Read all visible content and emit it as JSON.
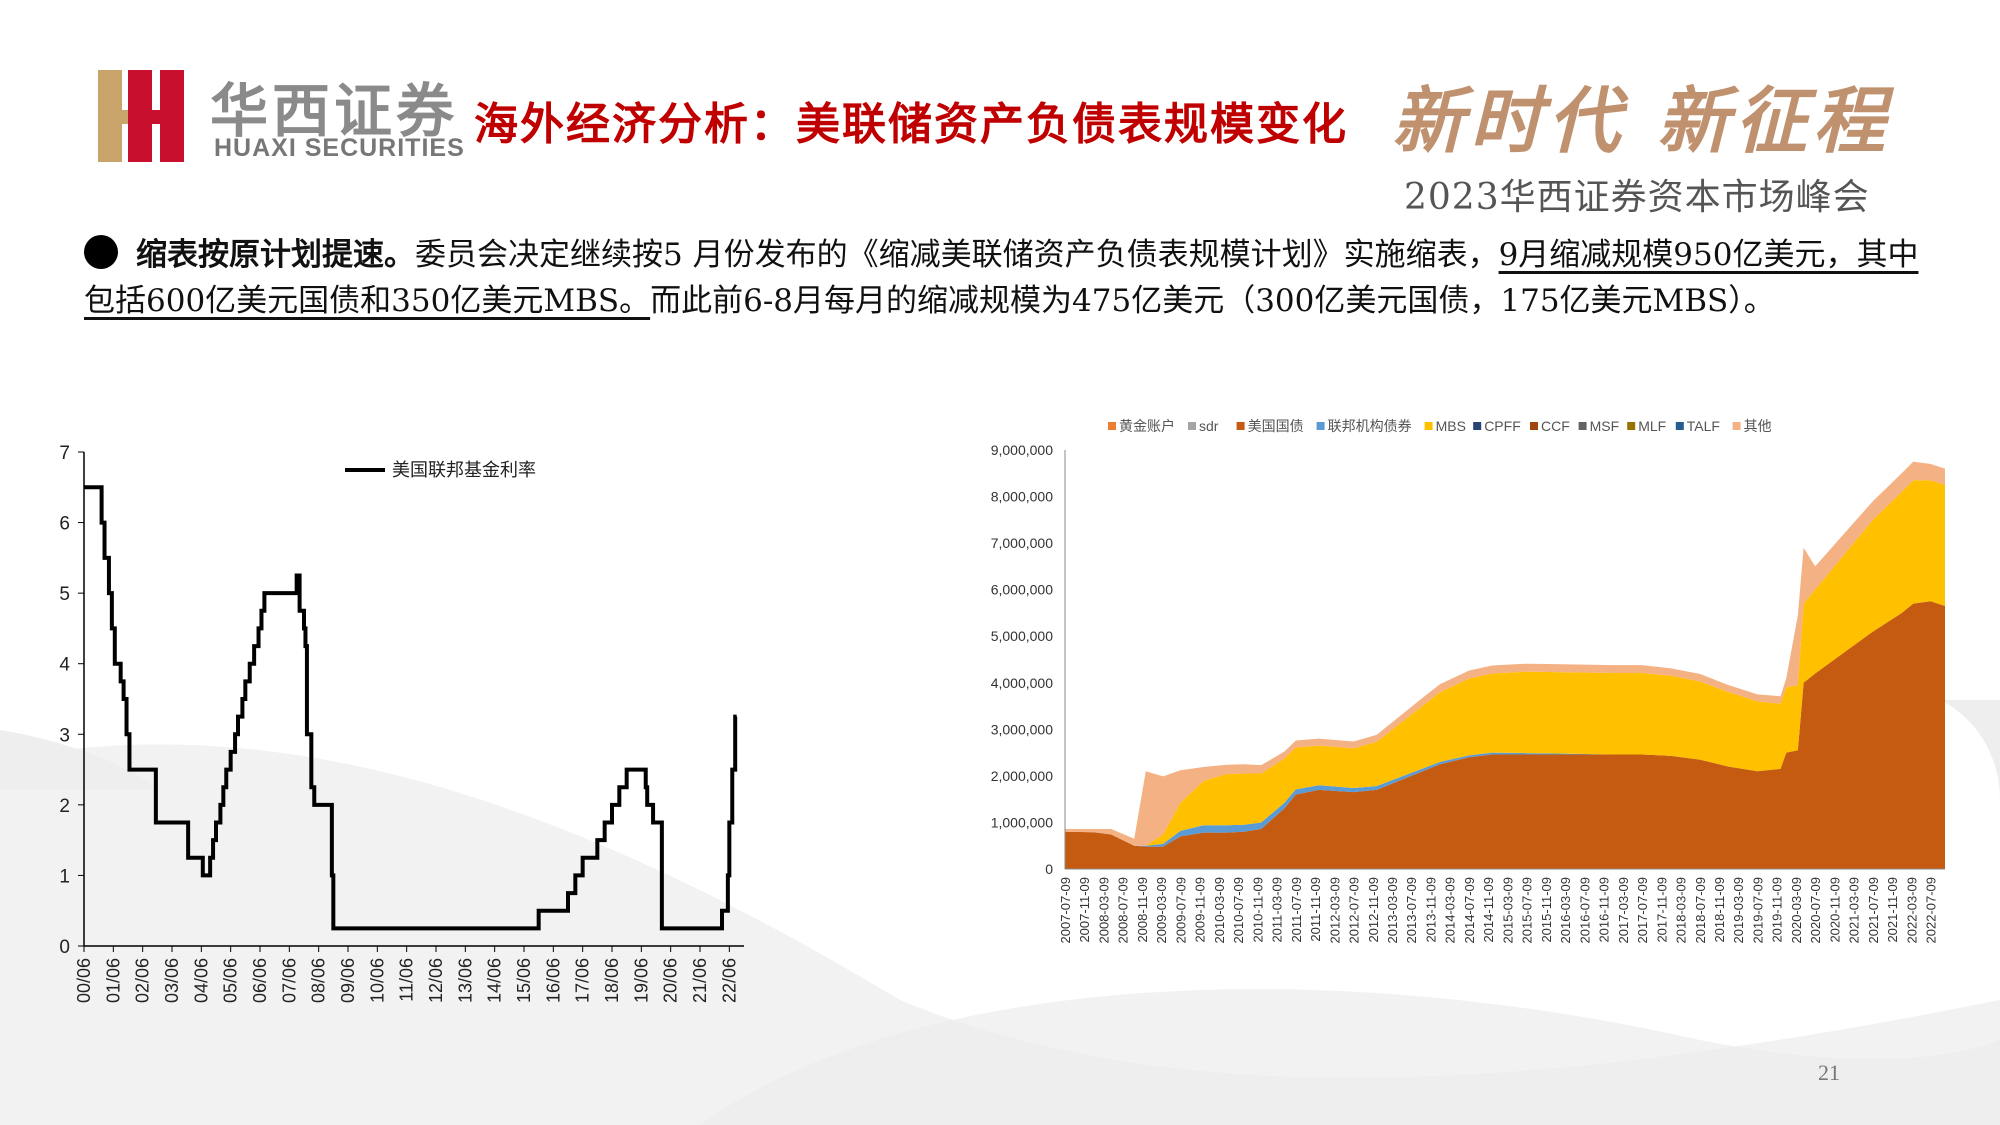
{
  "header": {
    "brand_cn": "华西证券",
    "brand_en": "HUAXI SECURITIES",
    "title": "海外经济分析：美联储资产负债表规模变化",
    "slogan": "新时代  新征程",
    "event": "2023华西证券资本市场峰会"
  },
  "paragraph": {
    "lead": "缩表按原计划提速。",
    "text1": "委员会决定继续按5 月份发布的《缩减美联储资产负债表规模计划》实施缩表，",
    "underlined": "9月缩减规模950亿美元，其中包括600亿美元国债和350亿美元MBS。",
    "text2": "而此前6-8月每月的缩减规模为475亿美元（300亿美元国债，175亿美元MBS）。"
  },
  "page_number": "21",
  "colors": {
    "title_red": "#c00000",
    "slogan_gold": "#c0916e",
    "treasury": "#c55a11",
    "mbs": "#ffc000",
    "other": "#f4b183",
    "agency": "#5b9bd5",
    "gold": "#ed7d31",
    "sdr": "#a5a5a5",
    "cpff": "#264478",
    "ccf": "#9e480e",
    "msf": "#636363",
    "mlf": "#997300",
    "talf": "#255e91"
  },
  "chart_data": [
    {
      "type": "line",
      "series": [
        {
          "name": "美国联邦基金利率",
          "x": [
            2000.45,
            2000.9,
            2001.05,
            2001.15,
            2001.3,
            2001.4,
            2001.5,
            2001.7,
            2001.8,
            2001.9,
            2002.0,
            2002.9,
            2003.5,
            2004.0,
            2004.5,
            2004.6,
            2004.75,
            2004.85,
            2004.95,
            2005.1,
            2005.2,
            2005.3,
            2005.45,
            2005.6,
            2005.7,
            2005.85,
            2005.95,
            2006.1,
            2006.25,
            2006.4,
            2006.5,
            2006.6,
            2007.7,
            2007.8,
            2007.95,
            2008.0,
            2008.05,
            2008.2,
            2008.3,
            2008.45,
            2008.6,
            2008.9,
            2008.95,
            2009.0,
            2015.95,
            2016.95,
            2017.2,
            2017.45,
            2017.95,
            2018.2,
            2018.45,
            2018.7,
            2018.95,
            2019.6,
            2019.65,
            2019.85,
            2020.15,
            2020.25,
            2022.2,
            2022.4,
            2022.45,
            2022.55,
            2022.65,
            2022.7
          ],
          "y": [
            6.5,
            6.5,
            6.0,
            5.5,
            5.0,
            4.5,
            4.0,
            3.75,
            3.5,
            3.0,
            2.5,
            1.75,
            1.75,
            1.25,
            1.0,
            1.0,
            1.25,
            1.5,
            1.75,
            2.0,
            2.25,
            2.5,
            2.75,
            3.0,
            3.25,
            3.5,
            3.75,
            4.0,
            4.25,
            4.5,
            4.75,
            5.0,
            5.25,
            4.75,
            4.5,
            4.25,
            3.0,
            2.25,
            2.0,
            2.0,
            2.0,
            1.0,
            0.25,
            0.25,
            0.5,
            0.75,
            1.0,
            1.25,
            1.5,
            1.75,
            2.0,
            2.25,
            2.5,
            2.25,
            2.0,
            1.75,
            0.25,
            0.25,
            0.5,
            1.0,
            1.75,
            2.5,
            3.25,
            3.25
          ]
        }
      ],
      "x_ticks": [
        "00/06",
        "01/06",
        "02/06",
        "03/06",
        "04/06",
        "05/06",
        "06/06",
        "07/06",
        "08/06",
        "09/06",
        "10/06",
        "11/06",
        "12/06",
        "13/06",
        "14/06",
        "15/06",
        "16/06",
        "17/06",
        "18/06",
        "19/06",
        "20/06",
        "21/06",
        "22/06"
      ],
      "y_ticks": [
        "0",
        "1",
        "2",
        "3",
        "4",
        "5",
        "6",
        "7"
      ],
      "ylim": [
        0,
        7
      ],
      "legend": "top-center"
    },
    {
      "type": "area",
      "stacked": true,
      "legend": [
        "黄金账户",
        "sdr",
        "美国国债",
        "联邦机构债券",
        "MBS",
        "CPFF",
        "CCF",
        "MSF",
        "MLF",
        "TALF",
        "其他"
      ],
      "x_ticks": [
        "2007-07-09",
        "2007-11-09",
        "2008-03-09",
        "2008-07-09",
        "2008-11-09",
        "2009-03-09",
        "2009-07-09",
        "2009-11-09",
        "2010-03-09",
        "2010-07-09",
        "2010-11-09",
        "2011-03-09",
        "2011-07-09",
        "2011-11-09",
        "2012-03-09",
        "2012-07-09",
        "2012-11-09",
        "2013-03-09",
        "2013-07-09",
        "2013-11-09",
        "2014-03-09",
        "2014-07-09",
        "2014-11-09",
        "2015-03-09",
        "2015-07-09",
        "2015-11-09",
        "2016-03-09",
        "2016-07-09",
        "2016-11-09",
        "2017-03-09",
        "2017-07-09",
        "2017-11-09",
        "2018-03-09",
        "2018-07-09",
        "2018-11-09",
        "2019-03-09",
        "2019-07-09",
        "2019-11-09",
        "2020-03-09",
        "2020-07-09",
        "2020-11-09",
        "2021-03-09",
        "2021-07-09",
        "2021-11-09",
        "2022-03-09",
        "2022-07-09"
      ],
      "y_ticks": [
        "0",
        "1,000,000",
        "2,000,000",
        "3,000,000",
        "4,000,000",
        "5,000,000",
        "6,000,000",
        "7,000,000",
        "8,000,000",
        "9,000,000"
      ],
      "ylim": [
        0,
        9000000
      ],
      "x": [
        2007.5,
        2008.0,
        2008.3,
        2008.7,
        2008.9,
        2009.2,
        2009.5,
        2009.9,
        2010.3,
        2010.6,
        2010.9,
        2011.3,
        2011.5,
        2011.9,
        2012.5,
        2012.9,
        2013.3,
        2013.7,
        2014.0,
        2014.5,
        2014.9,
        2015.5,
        2016.0,
        2016.5,
        2017.0,
        2017.5,
        2018.0,
        2018.5,
        2019.0,
        2019.5,
        2019.9,
        2020.0,
        2020.2,
        2020.3,
        2020.5,
        2021.0,
        2021.5,
        2022.0,
        2022.2,
        2022.5,
        2022.75
      ],
      "series": [
        {
          "name": "美国国债",
          "values": [
            800000,
            790000,
            740000,
            500000,
            480000,
            480000,
            700000,
            780000,
            780000,
            800000,
            860000,
            1300000,
            1600000,
            1700000,
            1650000,
            1700000,
            1900000,
            2100000,
            2250000,
            2400000,
            2460000,
            2460000,
            2460000,
            2460000,
            2460000,
            2460000,
            2430000,
            2350000,
            2200000,
            2100000,
            2150000,
            2500000,
            2550000,
            4000000,
            4200000,
            4650000,
            5100000,
            5500000,
            5700000,
            5750000,
            5650000
          ]
        },
        {
          "name": "联邦机构债券",
          "values": [
            0,
            0,
            0,
            0,
            20000,
            60000,
            120000,
            160000,
            160000,
            150000,
            140000,
            120000,
            110000,
            100000,
            90000,
            80000,
            70000,
            60000,
            50000,
            40000,
            40000,
            30000,
            20000,
            10000,
            0,
            0,
            0,
            0,
            0,
            0,
            0,
            0,
            0,
            0,
            0,
            0,
            0,
            0,
            0,
            0,
            0
          ]
        },
        {
          "name": "MBS",
          "values": [
            0,
            0,
            0,
            0,
            0,
            200000,
            600000,
            950000,
            1100000,
            1100000,
            1050000,
            950000,
            900000,
            850000,
            850000,
            950000,
            1150000,
            1350000,
            1500000,
            1650000,
            1700000,
            1750000,
            1750000,
            1750000,
            1750000,
            1750000,
            1720000,
            1680000,
            1600000,
            1500000,
            1400000,
            1400000,
            1400000,
            1700000,
            1800000,
            2100000,
            2400000,
            2600000,
            2650000,
            2600000,
            2600000
          ]
        },
        {
          "name": "其他",
          "values": [
            60000,
            70000,
            120000,
            150000,
            1600000,
            1250000,
            700000,
            300000,
            200000,
            200000,
            180000,
            150000,
            150000,
            150000,
            150000,
            150000,
            160000,
            170000,
            170000,
            170000,
            170000,
            170000,
            170000,
            170000,
            170000,
            170000,
            160000,
            160000,
            150000,
            150000,
            160000,
            200000,
            1500000,
            1200000,
            500000,
            450000,
            400000,
            400000,
            400000,
            350000,
            350000
          ]
        }
      ]
    }
  ]
}
